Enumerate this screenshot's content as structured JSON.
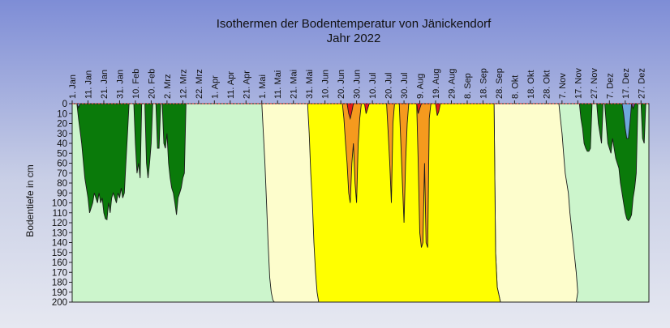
{
  "chart_data": {
    "type": "area",
    "title": "Isothermen der Bodentemperatur von Jänickendorf",
    "subtitle": "Jahr 2022",
    "ylabel": "Bodentiefe in cm",
    "xlabel": "",
    "ylim": [
      0,
      200
    ],
    "y_inverted": true,
    "y_ticks": [
      0,
      10,
      20,
      30,
      40,
      50,
      60,
      70,
      80,
      90,
      100,
      110,
      120,
      130,
      140,
      150,
      160,
      170,
      180,
      190,
      200
    ],
    "x_ticks": [
      {
        "day": 1,
        "label": "1. Jan"
      },
      {
        "day": 11,
        "label": "11. Jan"
      },
      {
        "day": 21,
        "label": "21. Jan"
      },
      {
        "day": 31,
        "label": "31. Jan"
      },
      {
        "day": 41,
        "label": "10. Feb"
      },
      {
        "day": 51,
        "label": "20. Feb"
      },
      {
        "day": 61,
        "label": "2. Mrz"
      },
      {
        "day": 71,
        "label": "12. Mrz"
      },
      {
        "day": 81,
        "label": "22. Mrz"
      },
      {
        "day": 91,
        "label": "1. Apr"
      },
      {
        "day": 101,
        "label": "11. Apr"
      },
      {
        "day": 111,
        "label": "21. Apr"
      },
      {
        "day": 121,
        "label": "1. Mai"
      },
      {
        "day": 131,
        "label": "11. Mai"
      },
      {
        "day": 141,
        "label": "21. Mai"
      },
      {
        "day": 151,
        "label": "31. Mai"
      },
      {
        "day": 161,
        "label": "10. Jun"
      },
      {
        "day": 171,
        "label": "20. Jun"
      },
      {
        "day": 181,
        "label": "30. Jun"
      },
      {
        "day": 191,
        "label": "10. Jul"
      },
      {
        "day": 201,
        "label": "20. Jul"
      },
      {
        "day": 211,
        "label": "30. Jul"
      },
      {
        "day": 221,
        "label": "9. Aug"
      },
      {
        "day": 231,
        "label": "19. Aug"
      },
      {
        "day": 241,
        "label": "29. Aug"
      },
      {
        "day": 251,
        "label": "8. Sep"
      },
      {
        "day": 261,
        "label": "18. Sep"
      },
      {
        "day": 271,
        "label": "28. Sep"
      },
      {
        "day": 281,
        "label": "8. Okt"
      },
      {
        "day": 291,
        "label": "18. Okt"
      },
      {
        "day": 301,
        "label": "28. Okt"
      },
      {
        "day": 311,
        "label": "7. Nov"
      },
      {
        "day": 321,
        "label": "17. Nov"
      },
      {
        "day": 331,
        "label": "27. Nov"
      },
      {
        "day": 341,
        "label": "7. Dez"
      },
      {
        "day": 351,
        "label": "17. Dez"
      },
      {
        "day": 361,
        "label": "27. Dez"
      }
    ],
    "x_range": [
      1,
      366
    ],
    "band_colors": {
      "lightgreen": "#ccf5cc",
      "darkgreen": "#0a7a0a",
      "lightblue": "#6fa8dc",
      "purple": "#9b5fc0",
      "cream": "#fdfdcc",
      "yellow": "#ffff00",
      "orange": "#f59a1e",
      "red": "#e51b1b"
    },
    "series": [
      {
        "color_key": "darkgreen",
        "segments": [
          [
            [
              4,
              0
            ],
            [
              5,
              15
            ],
            [
              7,
              40
            ],
            [
              9,
              75
            ],
            [
              11,
              95
            ],
            [
              12,
              110
            ],
            [
              13,
              105
            ],
            [
              14,
              100
            ],
            [
              15,
              90
            ],
            [
              16,
              95
            ],
            [
              17,
              100
            ],
            [
              18,
              90
            ],
            [
              19,
              100
            ],
            [
              20,
              95
            ],
            [
              21,
              110
            ],
            [
              22,
              116
            ],
            [
              23,
              117
            ],
            [
              24,
              100
            ],
            [
              25,
              110
            ],
            [
              26,
              95
            ],
            [
              27,
              90
            ],
            [
              28,
              95
            ],
            [
              29,
              100
            ],
            [
              30,
              90
            ],
            [
              31,
              95
            ],
            [
              32,
              85
            ],
            [
              33,
              95
            ],
            [
              34,
              90
            ],
            [
              35,
              60
            ],
            [
              36,
              30
            ],
            [
              37,
              0
            ]
          ],
          [
            [
              40,
              0
            ],
            [
              41,
              40
            ],
            [
              42,
              70
            ],
            [
              43,
              60
            ],
            [
              44,
              75
            ],
            [
              45,
              0
            ],
            [
              47,
              0
            ],
            [
              48,
              60
            ],
            [
              49,
              75
            ],
            [
              50,
              60
            ],
            [
              51,
              40
            ],
            [
              52,
              0
            ],
            [
              54,
              0
            ],
            [
              55,
              45
            ],
            [
              56,
              45
            ],
            [
              57,
              0
            ],
            [
              58,
              0
            ],
            [
              59,
              40
            ],
            [
              60,
              45
            ],
            [
              61,
              30
            ],
            [
              62,
              60
            ],
            [
              63,
              75
            ],
            [
              64,
              85
            ],
            [
              65,
              90
            ],
            [
              66,
              100
            ],
            [
              67,
              112
            ],
            [
              68,
              95
            ],
            [
              69,
              90
            ],
            [
              70,
              85
            ],
            [
              71,
              75
            ],
            [
              72,
              70
            ],
            [
              73,
              0
            ]
          ],
          [
            [
              338,
              0
            ],
            [
              339,
              20
            ],
            [
              340,
              40
            ],
            [
              341,
              45
            ],
            [
              342,
              50
            ],
            [
              343,
              35
            ],
            [
              344,
              45
            ],
            [
              345,
              55
            ],
            [
              346,
              60
            ],
            [
              347,
              65
            ],
            [
              348,
              80
            ],
            [
              349,
              90
            ],
            [
              350,
              100
            ],
            [
              351,
              110
            ],
            [
              352,
              116
            ],
            [
              353,
              118
            ],
            [
              354,
              116
            ],
            [
              355,
              112
            ],
            [
              356,
              95
            ],
            [
              357,
              85
            ],
            [
              358,
              70
            ],
            [
              359,
              0
            ]
          ],
          [
            [
              361,
              0
            ],
            [
              362,
              35
            ],
            [
              363,
              40
            ],
            [
              364,
              0
            ]
          ],
          [
            [
              322,
              0
            ],
            [
              323,
              15
            ],
            [
              324,
              25
            ],
            [
              325,
              40
            ],
            [
              326,
              45
            ],
            [
              327,
              48
            ],
            [
              328,
              48
            ],
            [
              329,
              45
            ],
            [
              330,
              0
            ],
            [
              333,
              0
            ],
            [
              334,
              20
            ],
            [
              335,
              30
            ],
            [
              336,
              40
            ],
            [
              337,
              0
            ]
          ]
        ]
      },
      {
        "color_key": "cream",
        "segments": [
          [
            [
              121,
              0
            ],
            [
              122,
              30
            ],
            [
              123,
              60
            ],
            [
              124,
              100
            ],
            [
              125,
              140
            ],
            [
              126,
              175
            ],
            [
              127,
              190
            ],
            [
              128,
              198
            ],
            [
              129,
              200
            ],
            [
              157,
              200
            ],
            [
              157,
              0
            ]
          ],
          [
            [
              268,
              0
            ],
            [
              269,
              150
            ],
            [
              270,
              185
            ],
            [
              271,
              192
            ],
            [
              272,
              200
            ],
            [
              320,
              200
            ],
            [
              321,
              190
            ],
            [
              320,
              170
            ],
            [
              318,
              140
            ],
            [
              316,
              110
            ],
            [
              315,
              90
            ],
            [
              313,
              70
            ],
            [
              312,
              50
            ],
            [
              311,
              30
            ],
            [
              310,
              15
            ],
            [
              309,
              0
            ]
          ]
        ]
      },
      {
        "color_key": "yellow",
        "segments": [
          [
            [
              150,
              0
            ],
            [
              151,
              30
            ],
            [
              152,
              70
            ],
            [
              153,
              100
            ],
            [
              154,
              140
            ],
            [
              155,
              170
            ],
            [
              156,
              190
            ],
            [
              157,
              200
            ],
            [
              272,
              200
            ],
            [
              271,
              192
            ],
            [
              270,
              185
            ],
            [
              269,
              150
            ],
            [
              268,
              0
            ]
          ]
        ]
      },
      {
        "color_key": "orange",
        "segments": [
          [
            [
              172,
              0
            ],
            [
              173,
              15
            ],
            [
              174,
              40
            ],
            [
              175,
              60
            ],
            [
              176,
              90
            ],
            [
              177,
              100
            ],
            [
              178,
              60
            ],
            [
              179,
              40
            ],
            [
              180,
              80
            ],
            [
              181,
              100
            ],
            [
              182,
              40
            ],
            [
              183,
              15
            ],
            [
              184,
              0
            ]
          ],
          [
            [
              200,
              0
            ],
            [
              201,
              30
            ],
            [
              202,
              60
            ],
            [
              203,
              100
            ],
            [
              204,
              20
            ],
            [
              205,
              0
            ]
          ],
          [
            [
              208,
              0
            ],
            [
              209,
              40
            ],
            [
              210,
              80
            ],
            [
              211,
              120
            ],
            [
              212,
              60
            ],
            [
              213,
              20
            ],
            [
              214,
              0
            ]
          ],
          [
            [
              219,
              0
            ],
            [
              220,
              60
            ],
            [
              221,
              130
            ],
            [
              222,
              145
            ],
            [
              223,
              140
            ],
            [
              224,
              60
            ],
            [
              225,
              140
            ],
            [
              226,
              145
            ],
            [
              227,
              15
            ],
            [
              228,
              0
            ]
          ]
        ]
      },
      {
        "color_key": "red",
        "segments": [
          [
            [
              175,
              0
            ],
            [
              176,
              10
            ],
            [
              177,
              15
            ],
            [
              178,
              8
            ],
            [
              179,
              0
            ]
          ],
          [
            [
              186,
              0
            ],
            [
              187,
              10
            ],
            [
              188,
              5
            ],
            [
              189,
              0
            ]
          ],
          [
            [
              219,
              0
            ],
            [
              220,
              10
            ],
            [
              221,
              5
            ],
            [
              222,
              0
            ]
          ],
          [
            [
              231,
              0
            ],
            [
              232,
              12
            ],
            [
              233,
              8
            ],
            [
              234,
              0
            ]
          ]
        ]
      },
      {
        "color_key": "lightblue",
        "segments": [
          [
            [
              4,
              0
            ],
            [
              5,
              4
            ],
            [
              6,
              0
            ]
          ],
          [
            [
              349,
              0
            ],
            [
              350,
              10
            ],
            [
              351,
              25
            ],
            [
              352,
              35
            ],
            [
              353,
              35
            ],
            [
              354,
              20
            ],
            [
              355,
              0
            ]
          ]
        ]
      },
      {
        "color_key": "purple",
        "segments": [
          [
            [
              355,
              0
            ],
            [
              356,
              5
            ],
            [
              357,
              0
            ]
          ]
        ]
      }
    ]
  }
}
